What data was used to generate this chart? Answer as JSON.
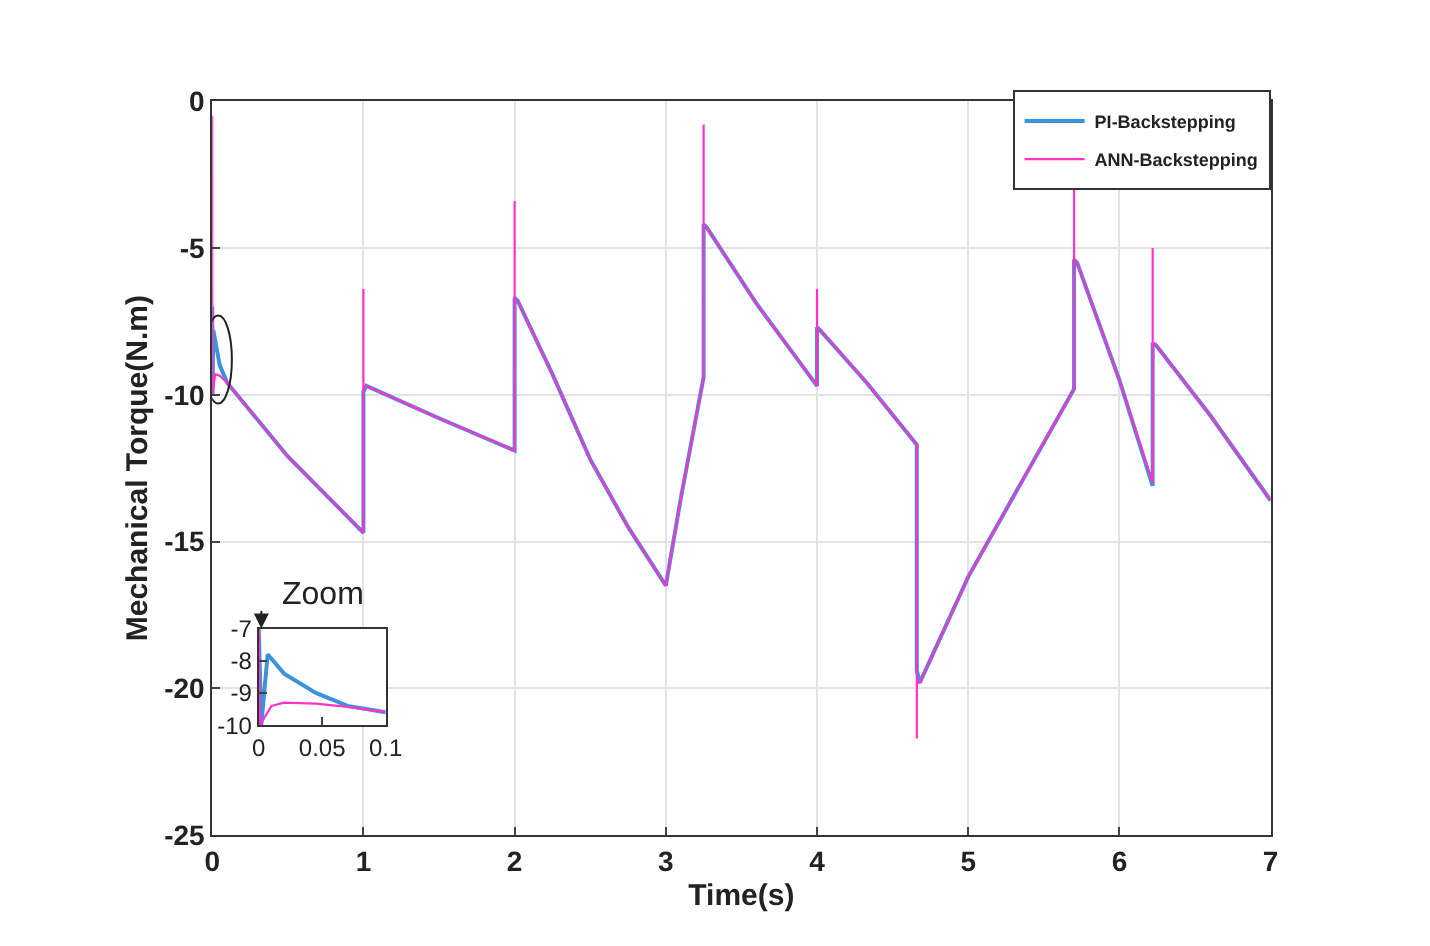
{
  "chart_data": [
    {
      "type": "line",
      "xlabel": "Time(s)",
      "ylabel": "Mechanical Torque(N.m)",
      "xlim": [
        0,
        7
      ],
      "xticks": [
        0,
        1,
        2,
        3,
        4,
        5,
        6,
        7
      ],
      "ylim": [
        -25,
        0
      ],
      "yticks": [
        0,
        -5,
        -10,
        -15,
        -20,
        -25
      ],
      "grid": true,
      "legend": "top right",
      "line_style": "solid",
      "marker": "none",
      "series": [
        {
          "name": "PI-Backstepping",
          "color": "#3b94d9",
          "x": [
            0,
            0.002,
            0.007,
            0.05,
            0.1,
            0.5,
            1.0,
            1.0,
            1.02,
            1.5,
            2.0,
            2.0,
            2.02,
            2.25,
            2.5,
            2.75,
            3.0,
            3.1,
            3.25,
            3.25,
            3.27,
            3.6,
            4.0,
            4.0,
            4.02,
            4.33,
            4.66,
            4.66,
            4.68,
            5.0,
            5.35,
            5.7,
            5.7,
            5.72,
            6.0,
            6.22,
            6.22,
            6.24,
            6.6,
            7.0
          ],
          "values": [
            -7,
            -10,
            -7.8,
            -9.0,
            -9.6,
            -12.1,
            -14.7,
            -9.9,
            -9.7,
            -10.8,
            -11.9,
            -6.7,
            -6.8,
            -9.3,
            -12.2,
            -14.5,
            -16.5,
            -13.5,
            -9.4,
            -4.2,
            -4.3,
            -6.9,
            -9.7,
            -7.7,
            -7.8,
            -9.6,
            -11.7,
            -19.4,
            -19.8,
            -16.2,
            -13.0,
            -9.8,
            -5.4,
            -5.5,
            -9.5,
            -13.1,
            -8.3,
            -8.3,
            -10.7,
            -13.6
          ]
        },
        {
          "name": "ANN-Backstepping",
          "color": "#ff33cc",
          "x": [
            0,
            0.001,
            0.02,
            0.05,
            0.1,
            0.5,
            1.0,
            1.0,
            1.0,
            1.02,
            1.5,
            2.0,
            2.0,
            2.0,
            2.02,
            2.25,
            2.5,
            2.75,
            3.0,
            3.1,
            3.25,
            3.25,
            3.25,
            3.27,
            3.6,
            4.0,
            4.0,
            4.0,
            4.02,
            4.33,
            4.66,
            4.66,
            4.66,
            4.68,
            5.0,
            5.35,
            5.7,
            5.7,
            5.7,
            5.72,
            6.0,
            6.22,
            6.22,
            6.22,
            6.24,
            6.6,
            7.0
          ],
          "values": [
            -0.5,
            -10,
            -9.3,
            -9.35,
            -9.6,
            -12.1,
            -14.7,
            -6.4,
            -9.7,
            -9.7,
            -10.8,
            -11.9,
            -3.4,
            -6.8,
            -6.8,
            -9.3,
            -12.2,
            -14.5,
            -16.5,
            -13.5,
            -9.4,
            -0.8,
            -4.3,
            -4.3,
            -6.9,
            -9.7,
            -6.4,
            -7.8,
            -7.8,
            -9.6,
            -11.7,
            -21.7,
            -19.8,
            -19.8,
            -16.2,
            -13.0,
            -9.8,
            -2.9,
            -5.4,
            -5.5,
            -9.5,
            -13.0,
            -5.0,
            -8.2,
            -8.3,
            -10.7,
            -13.6
          ]
        }
      ]
    },
    {
      "type": "line",
      "title": "Zoom",
      "xlim": [
        0,
        0.1
      ],
      "xticks": [
        0,
        0.05,
        0.1
      ],
      "ylim": [
        -10,
        -7
      ],
      "yticks": [
        -7,
        -8,
        -9,
        -10
      ],
      "grid": false,
      "legend": false,
      "line_style": "solid",
      "marker": "none",
      "series": [
        {
          "color": "#3b94d9",
          "x": [
            0,
            0.002,
            0.007,
            0.02,
            0.045,
            0.07,
            0.1
          ],
          "values": [
            -7,
            -10,
            -7.8,
            -8.4,
            -9.0,
            -9.4,
            -9.6
          ]
        },
        {
          "color": "#ff33cc",
          "x": [
            0,
            0.001,
            0.01,
            0.02,
            0.045,
            0.07,
            0.1
          ],
          "values": [
            -7,
            -10,
            -9.4,
            -9.3,
            -9.33,
            -9.43,
            -9.6
          ]
        }
      ]
    }
  ]
}
